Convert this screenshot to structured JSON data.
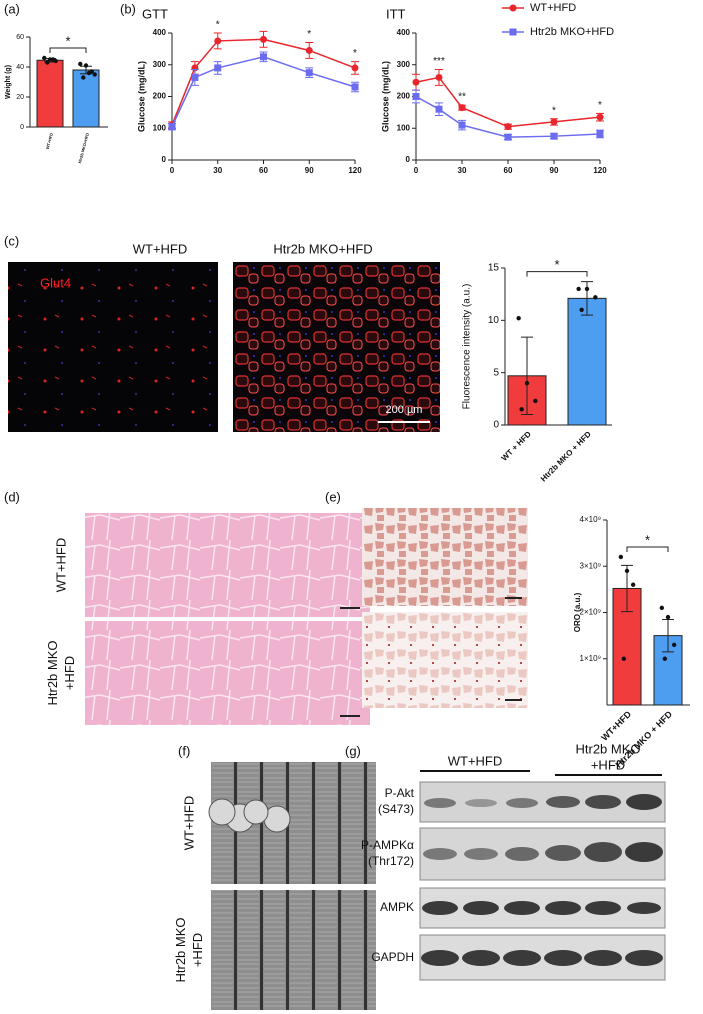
{
  "chart_data": [
    {
      "type": "bar",
      "ylabel": "Weight (g)",
      "categories": [
        "WT+HFD",
        "Htr2b MKO+HFD"
      ],
      "values": [
        44.5,
        38
      ],
      "errors": [
        1.2,
        2.5
      ],
      "points": [
        [
          46,
          45,
          44,
          43,
          45
        ],
        [
          42,
          41,
          37,
          33,
          36,
          35
        ]
      ],
      "colors": [
        "#f03c3c",
        "#4d9df0"
      ],
      "ylim": [
        0,
        60
      ],
      "yticks": [
        0,
        20,
        40,
        60
      ],
      "significance": "*"
    },
    {
      "type": "line",
      "title": "GTT",
      "ylabel": "Glucose (mg/dL)",
      "x": [
        0,
        15,
        30,
        60,
        90,
        120
      ],
      "xlim": [
        0,
        120
      ],
      "xticks": [
        0,
        30,
        60,
        90,
        120
      ],
      "ylim": [
        0,
        400
      ],
      "yticks": [
        0,
        100,
        200,
        300,
        400
      ],
      "series": [
        {
          "color": "#e8262b",
          "marker": "circle",
          "values": [
            110,
            290,
            375,
            380,
            345,
            290
          ],
          "errors": [
            10,
            20,
            25,
            25,
            25,
            20
          ]
        },
        {
          "color": "#6b6cf0",
          "marker": "square",
          "values": [
            105,
            260,
            290,
            325,
            275,
            230
          ],
          "errors": [
            10,
            25,
            20,
            15,
            15,
            15
          ]
        }
      ],
      "annotations": [
        {
          "x": 30,
          "text": "*"
        },
        {
          "x": 90,
          "text": "*"
        },
        {
          "x": 120,
          "text": "*"
        }
      ]
    },
    {
      "type": "line",
      "title": "ITT",
      "ylabel": "Glucose (mg/dL)",
      "x": [
        0,
        15,
        30,
        60,
        90,
        120
      ],
      "xlim": [
        0,
        120
      ],
      "xticks": [
        0,
        30,
        60,
        90,
        120
      ],
      "ylim": [
        0,
        400
      ],
      "yticks": [
        0,
        100,
        200,
        300,
        400
      ],
      "legend": "outside-top",
      "series": [
        {
          "name": "WT+HFD",
          "color": "#e8262b",
          "marker": "circle",
          "values": [
            245,
            260,
            165,
            105,
            120,
            135
          ],
          "errors": [
            25,
            25,
            8,
            8,
            10,
            12
          ]
        },
        {
          "name": "Htr2b MKO+HFD",
          "color": "#6b6cf0",
          "marker": "square",
          "values": [
            200,
            160,
            110,
            72,
            75,
            82
          ],
          "errors": [
            20,
            20,
            15,
            8,
            8,
            12
          ]
        }
      ],
      "annotations": [
        {
          "x": 15,
          "text": "***"
        },
        {
          "x": 30,
          "text": "**"
        },
        {
          "x": 90,
          "text": "*"
        },
        {
          "x": 120,
          "text": "*"
        }
      ]
    },
    {
      "type": "bar",
      "ylabel": "Fluorescence intensity (a.u.)",
      "categories": [
        "WT + HFD",
        "Htr2b MKO + HFD"
      ],
      "values": [
        4.7,
        12.1
      ],
      "errors": [
        3.7,
        1.6
      ],
      "points": [
        [
          10.2,
          4,
          2.3,
          1.5
        ],
        [
          13,
          13,
          12.2,
          11
        ]
      ],
      "colors": [
        "#f03c3c",
        "#4d9df0"
      ],
      "ylim": [
        0,
        15
      ],
      "yticks": [
        0,
        5,
        10,
        15
      ],
      "significance": "*"
    },
    {
      "type": "bar",
      "ylabel": "ORO (a.u.)",
      "categories": [
        "WT+HFD",
        "Htr2b MKO + HFD"
      ],
      "values": [
        2520000000,
        1500000000
      ],
      "errors": [
        500000000,
        350000000
      ],
      "points": [
        [
          3200000000,
          2900000000,
          2600000000,
          1000000000
        ],
        [
          2100000000,
          1900000000,
          1300000000,
          1000000000
        ]
      ],
      "colors": [
        "#f03c3c",
        "#4d9df0"
      ],
      "ylim": [
        0,
        4000000000
      ],
      "yticks": [
        {
          "value": 1000000000,
          "label": "1×10⁹"
        },
        {
          "value": 2000000000,
          "label": "2×10⁹"
        },
        {
          "value": 3000000000,
          "label": "3×10⁹"
        },
        {
          "value": 4000000000,
          "label": "4×10⁹"
        }
      ],
      "significance": "*"
    }
  ],
  "panels": [
    "(a)",
    "(b)",
    "(c)",
    "(d)",
    "(e)",
    "(f)",
    "(g)"
  ],
  "c_images": {
    "left": "WT+HFD",
    "right": "Htr2b MKO+HFD",
    "stain": "Glut4",
    "scale": "200 µm"
  },
  "d_rows": [
    [
      "WT+HFD"
    ],
    [
      "Htr2b MKO",
      "+HFD"
    ]
  ],
  "f_rows": [
    [
      "WT+HFD"
    ],
    [
      "Htr2b MKO",
      "+HFD"
    ]
  ],
  "g": {
    "groups": [
      [
        "WT+HFD"
      ],
      [
        "Htr2b MKO",
        "+HFD"
      ]
    ],
    "rows": [
      [
        "P-Akt",
        "(S473)"
      ],
      [
        "P-AMPKα",
        "(Thr172)"
      ],
      [
        "AMPK"
      ],
      [
        "GAPDH"
      ]
    ]
  }
}
